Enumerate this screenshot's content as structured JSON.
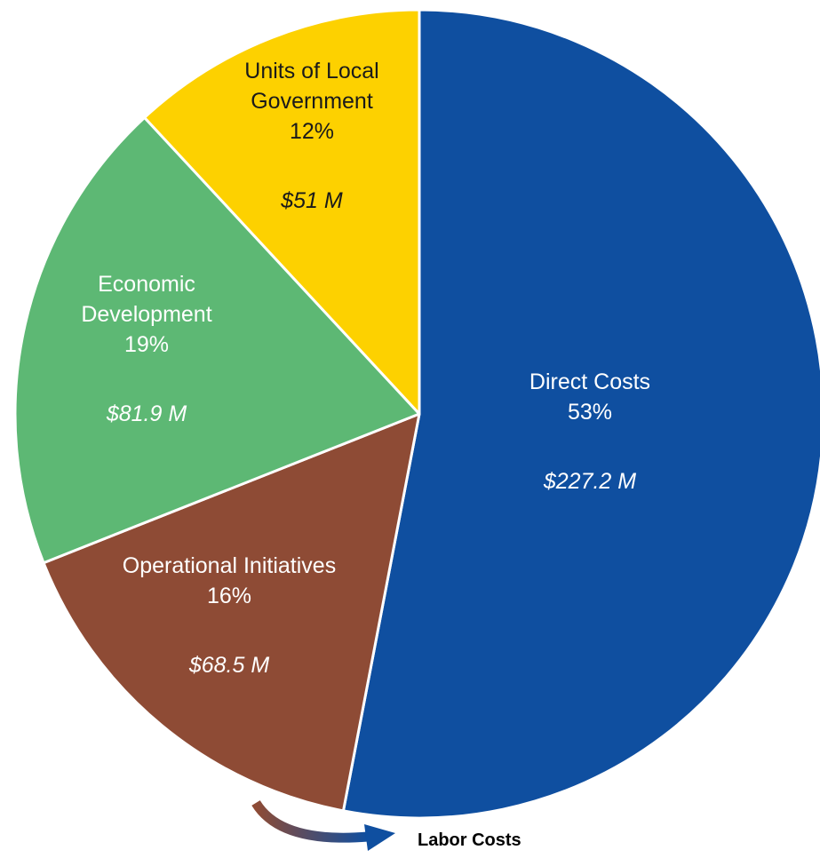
{
  "chart_data": {
    "type": "pie",
    "slices": [
      {
        "category": "Direct Costs",
        "label_lines": [
          "Direct Costs"
        ],
        "percent": 53,
        "percent_label": "53%",
        "value": 227.2,
        "value_label": "$227.2 M",
        "color": "#0F4FA0",
        "text_color": "#ffffff"
      },
      {
        "category": "Operational Initiatives",
        "label_lines": [
          "Operational Initiatives"
        ],
        "percent": 16,
        "percent_label": "16%",
        "value": 68.5,
        "value_label": "$68.5 M",
        "color": "#8E4B35",
        "text_color": "#ffffff"
      },
      {
        "category": "Economic Development",
        "label_lines": [
          "Economic",
          "Development"
        ],
        "percent": 19,
        "percent_label": "19%",
        "value": 81.9,
        "value_label": "$81.9 M",
        "color": "#5DB874",
        "text_color": "#ffffff"
      },
      {
        "category": "Units of Local Government",
        "label_lines": [
          "Units of Local",
          "Government"
        ],
        "percent": 12,
        "percent_label": "12%",
        "value": 51,
        "value_label": "$51 M",
        "color": "#FDD100",
        "text_color": "#1a1a1a"
      }
    ],
    "start_angle_deg": 0,
    "direction": "clockwise",
    "annotation": {
      "text": "Labor Costs",
      "from": "Operational Initiatives",
      "to": "Direct Costs"
    }
  }
}
